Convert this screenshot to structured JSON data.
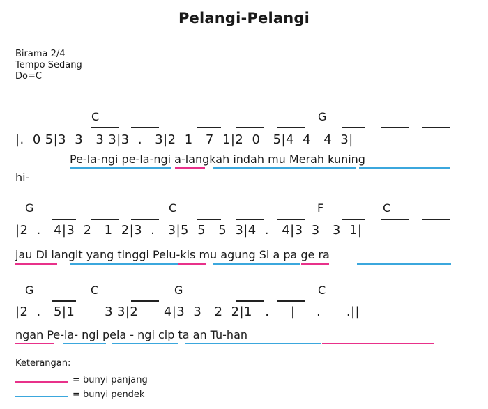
{
  "title": "Pelangi-Pelangi",
  "meta": {
    "birama": "Birama 2/4",
    "tempo": "Tempo Sedang",
    "do": "Do=C"
  },
  "rows": [
    {
      "chords": [
        "C",
        "G"
      ],
      "notes": "|.  0 5|3  3   3 3|3  .   3|2  1   7  1|2  0   5|4  4   4  3|",
      "lyric": "Pe-la-ngi pe-la-ngi   a-langkah indah mu  Merah kuning",
      "lyric_prefix": "",
      "lyric_next": "hi-"
    },
    {
      "chords": [
        "G",
        "C",
        "F",
        "C"
      ],
      "notes": "|2  .   4|3  2   1  2|3  .   3|5  5   5  3|4  .   4|3  3   3  1|",
      "lyric": "jau    Di langit yang tinggi Pelu-kis mu agung  Si a  pa ge ra"
    },
    {
      "chords": [
        "G",
        "C",
        "G",
        "C"
      ],
      "notes": "|2  .   5|1       3 3|2      4|3  3   2  2|1   .     |     .      .||",
      "lyric": "ngan  Pe-la-  ngi pela  - ngi cip ta an Tu-han"
    }
  ],
  "legend": {
    "title": "Keterangan:",
    "long": "= bunyi panjang",
    "short": "= bunyi pendek"
  },
  "colors": {
    "long": "#e8318a",
    "short": "#3ba7dd"
  }
}
